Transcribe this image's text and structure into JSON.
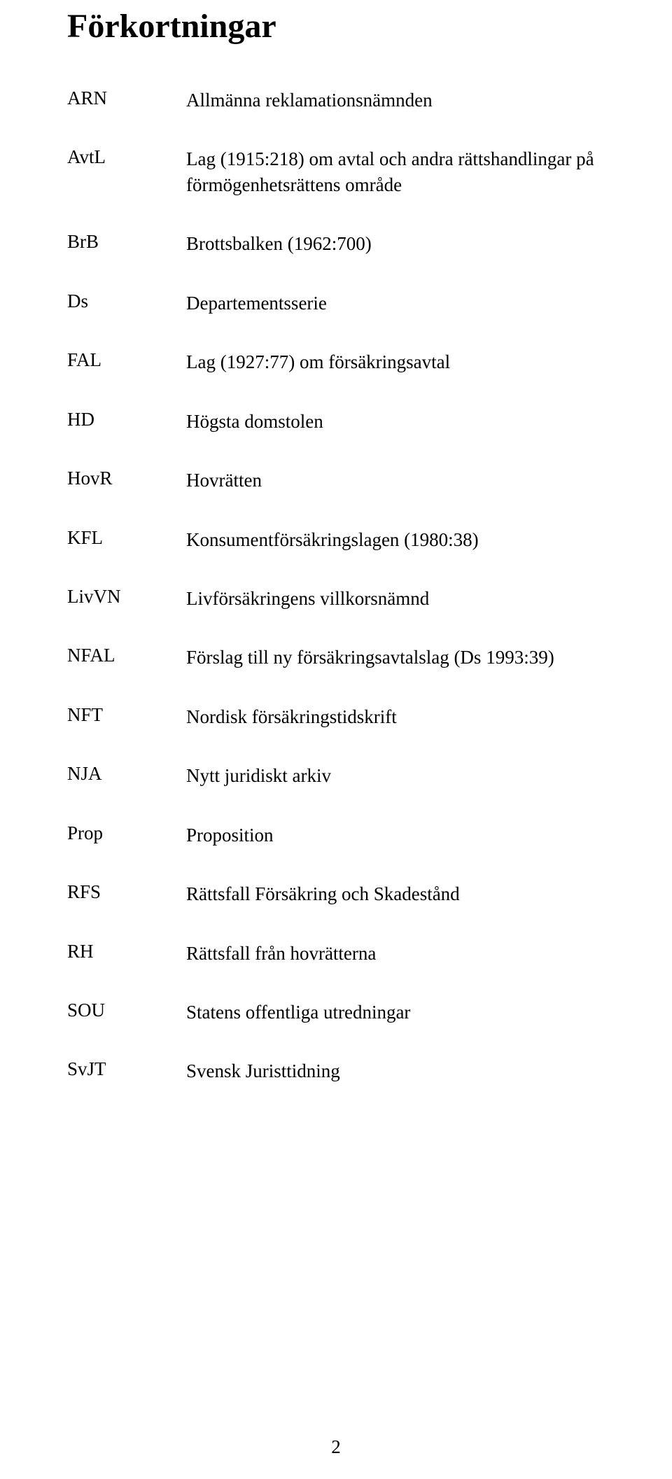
{
  "title": "Förkortningar",
  "page_number": "2",
  "rows": [
    {
      "abbr": "ARN",
      "def": "Allmänna reklamationsnämnden"
    },
    {
      "abbr": "AvtL",
      "def": "Lag (1915:218) om avtal och andra rättshandlingar på förmögenhetsrättens område"
    },
    {
      "abbr": "BrB",
      "def": "Brottsbalken (1962:700)"
    },
    {
      "abbr": "Ds",
      "def": "Departementsserie"
    },
    {
      "abbr": "FAL",
      "def": "Lag (1927:77) om försäkringsavtal"
    },
    {
      "abbr": "HD",
      "def": "Högsta domstolen"
    },
    {
      "abbr": "HovR",
      "def": "Hovrätten"
    },
    {
      "abbr": "KFL",
      "def": "Konsumentförsäkringslagen (1980:38)"
    },
    {
      "abbr": "LivVN",
      "def": "Livförsäkringens villkorsnämnd"
    },
    {
      "abbr": "NFAL",
      "def": "Förslag till ny försäkringsavtalslag (Ds 1993:39)"
    },
    {
      "abbr": "NFT",
      "def": "Nordisk försäkringstidskrift"
    },
    {
      "abbr": "NJA",
      "def": "Nytt juridiskt arkiv"
    },
    {
      "abbr": "Prop",
      "def": "Proposition"
    },
    {
      "abbr": "RFS",
      "def": "Rättsfall Försäkring och Skadestånd"
    },
    {
      "abbr": "RH",
      "def": "Rättsfall från hovrätterna"
    },
    {
      "abbr": "SOU",
      "def": "Statens offentliga utredningar"
    },
    {
      "abbr": "SvJT",
      "def": "Svensk Juristtidning"
    }
  ]
}
